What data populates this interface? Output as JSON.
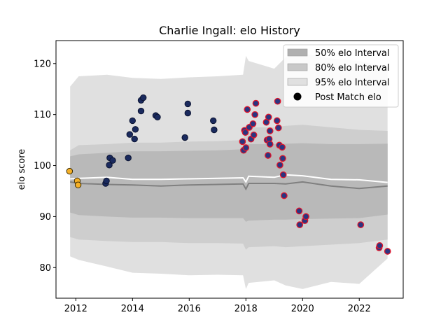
{
  "chart_data": {
    "type": "scatter",
    "title": "Charlie Ingall: elo History",
    "xlabel": "",
    "ylabel": "elo score",
    "xlim": [
      2011.3,
      2023.55
    ],
    "ylim": [
      74,
      124.5
    ],
    "xticks": [
      2012,
      2014,
      2016,
      2018,
      2020,
      2022
    ],
    "xtick_labels": [
      "2012",
      "2014",
      "2016",
      "2018",
      "2020",
      "2022"
    ],
    "yticks": [
      80,
      90,
      100,
      110,
      120
    ],
    "ytick_labels": [
      "80",
      "90",
      "100",
      "110",
      "120"
    ],
    "grid": false,
    "legend_position": "top-right",
    "legend": [
      {
        "label": "50% elo Interval",
        "kind": "patch",
        "color": "#b0b0b0"
      },
      {
        "label": "80% elo Interval",
        "kind": "patch",
        "color": "#c8c8c8"
      },
      {
        "label": "95% elo Interval",
        "kind": "patch",
        "color": "#e0e0e0"
      },
      {
        "label": "Post Match elo",
        "kind": "marker",
        "color": "#000000"
      }
    ],
    "colors": {
      "band95": "#e0e0e0",
      "band80": "#cecece",
      "band50": "#b9b9b9",
      "median_line": "#808080",
      "mean_line": "#ffffff",
      "early_fill": "#f5b027",
      "navy_fill": "#1a2a5e",
      "red_fill": "#2b3580",
      "red_edge": "#e0142a"
    },
    "bands": {
      "x": [
        2011.8,
        2012.1,
        2013.1,
        2014.0,
        2015.0,
        2016.0,
        2017.0,
        2017.9,
        2018.0,
        2018.1,
        2019.0,
        2019.4,
        2020.0,
        2021.0,
        2022.0,
        2023.0
      ],
      "upper95": [
        115.5,
        117.5,
        117.8,
        117.2,
        117.0,
        117.3,
        117.5,
        117.8,
        121.5,
        120.5,
        119.0,
        121.2,
        122.0,
        121.0,
        120.5,
        119.3
      ],
      "lower95": [
        82.2,
        81.5,
        80.2,
        79.0,
        78.8,
        78.5,
        78.6,
        78.5,
        75.8,
        77.0,
        77.5,
        76.5,
        75.8,
        77.2,
        76.8,
        81.8
      ],
      "upper80": [
        103.0,
        104.0,
        104.2,
        104.5,
        104.5,
        104.7,
        104.8,
        105.0,
        107.0,
        107.5,
        107.5,
        107.8,
        108.0,
        107.5,
        107.0,
        106.8
      ],
      "lower80": [
        86.0,
        85.5,
        85.2,
        85.0,
        85.0,
        84.8,
        84.8,
        84.7,
        83.5,
        84.0,
        84.2,
        84.0,
        84.2,
        84.5,
        84.8,
        85.5
      ],
      "upper50": [
        101.8,
        102.2,
        102.5,
        102.8,
        102.8,
        102.9,
        103.0,
        103.2,
        104.0,
        104.2,
        104.2,
        104.3,
        104.4,
        104.2,
        104.2,
        104.3
      ],
      "lower50": [
        90.8,
        90.3,
        90.0,
        89.8,
        89.8,
        89.7,
        89.7,
        89.7,
        89.0,
        89.2,
        89.4,
        89.4,
        89.5,
        89.6,
        89.7,
        90.4
      ],
      "median": [
        96.8,
        96.5,
        96.3,
        96.2,
        96.0,
        96.2,
        96.3,
        96.4,
        95.4,
        96.5,
        96.5,
        96.4,
        96.8,
        96.0,
        95.5,
        96.0
      ],
      "mean": [
        97.4,
        97.5,
        97.7,
        97.3,
        97.3,
        97.4,
        97.5,
        97.6,
        96.8,
        97.9,
        97.7,
        98.2,
        98.0,
        97.3,
        97.2,
        96.7
      ]
    },
    "series": [
      {
        "name": "early",
        "points": [
          {
            "x": 2011.78,
            "y": 98.9
          },
          {
            "x": 2012.05,
            "y": 97.0
          },
          {
            "x": 2012.08,
            "y": 96.2
          }
        ]
      },
      {
        "name": "navy",
        "points": [
          {
            "x": 2013.05,
            "y": 96.5
          },
          {
            "x": 2013.08,
            "y": 97.0
          },
          {
            "x": 2013.18,
            "y": 100.1
          },
          {
            "x": 2013.2,
            "y": 101.5
          },
          {
            "x": 2013.3,
            "y": 101.0
          },
          {
            "x": 2013.85,
            "y": 101.5
          },
          {
            "x": 2013.9,
            "y": 106.1
          },
          {
            "x": 2014.0,
            "y": 108.8
          },
          {
            "x": 2014.07,
            "y": 105.2
          },
          {
            "x": 2014.1,
            "y": 107.1
          },
          {
            "x": 2014.3,
            "y": 110.7
          },
          {
            "x": 2014.3,
            "y": 112.8
          },
          {
            "x": 2014.38,
            "y": 113.3
          },
          {
            "x": 2014.82,
            "y": 109.8
          },
          {
            "x": 2014.88,
            "y": 109.5
          },
          {
            "x": 2015.85,
            "y": 105.5
          },
          {
            "x": 2015.95,
            "y": 110.3
          },
          {
            "x": 2015.95,
            "y": 112.1
          },
          {
            "x": 2016.85,
            "y": 108.8
          },
          {
            "x": 2016.88,
            "y": 107.0
          }
        ]
      },
      {
        "name": "red",
        "points": [
          {
            "x": 2017.88,
            "y": 104.7
          },
          {
            "x": 2017.92,
            "y": 103.0
          },
          {
            "x": 2017.95,
            "y": 106.9
          },
          {
            "x": 2017.98,
            "y": 106.5
          },
          {
            "x": 2018.0,
            "y": 103.5
          },
          {
            "x": 2018.05,
            "y": 111.0
          },
          {
            "x": 2018.12,
            "y": 107.5
          },
          {
            "x": 2018.18,
            "y": 105.2
          },
          {
            "x": 2018.25,
            "y": 108.2
          },
          {
            "x": 2018.28,
            "y": 106.0
          },
          {
            "x": 2018.32,
            "y": 110.0
          },
          {
            "x": 2018.35,
            "y": 112.2
          },
          {
            "x": 2018.72,
            "y": 108.5
          },
          {
            "x": 2018.75,
            "y": 105.0
          },
          {
            "x": 2018.78,
            "y": 102.0
          },
          {
            "x": 2018.8,
            "y": 109.5
          },
          {
            "x": 2018.82,
            "y": 105.2
          },
          {
            "x": 2018.85,
            "y": 104.2
          },
          {
            "x": 2018.85,
            "y": 106.8
          },
          {
            "x": 2019.1,
            "y": 108.8
          },
          {
            "x": 2019.12,
            "y": 112.6
          },
          {
            "x": 2019.15,
            "y": 107.4
          },
          {
            "x": 2019.18,
            "y": 104.0
          },
          {
            "x": 2019.2,
            "y": 100.1
          },
          {
            "x": 2019.28,
            "y": 103.6
          },
          {
            "x": 2019.3,
            "y": 101.4
          },
          {
            "x": 2019.32,
            "y": 98.2
          },
          {
            "x": 2019.35,
            "y": 94.1
          },
          {
            "x": 2019.88,
            "y": 91.1
          },
          {
            "x": 2019.9,
            "y": 88.4
          },
          {
            "x": 2020.08,
            "y": 89.2
          },
          {
            "x": 2020.12,
            "y": 90.0
          },
          {
            "x": 2022.05,
            "y": 88.4
          },
          {
            "x": 2022.7,
            "y": 83.9
          },
          {
            "x": 2022.72,
            "y": 84.3
          },
          {
            "x": 2023.0,
            "y": 83.2
          }
        ]
      }
    ]
  }
}
